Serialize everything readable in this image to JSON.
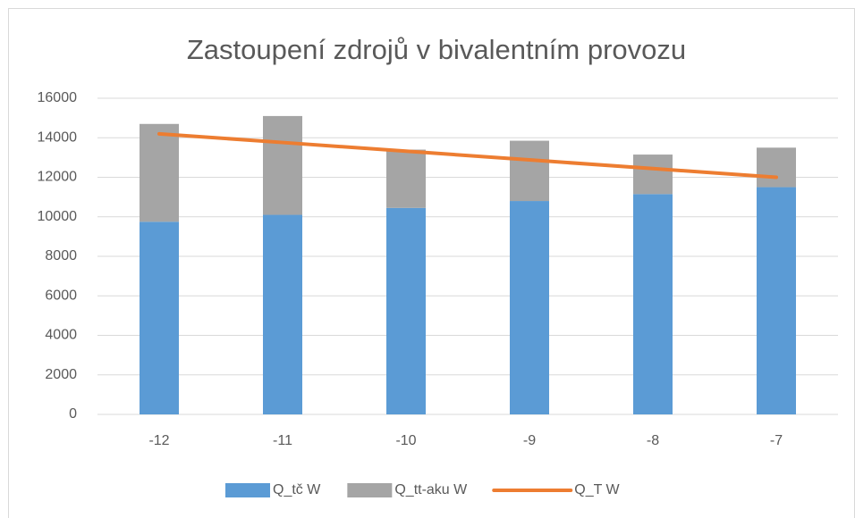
{
  "chart_data": {
    "type": "bar",
    "title": "Zastoupení zdrojů v bivalentním provozu",
    "categories": [
      "-12",
      "-11",
      "-10",
      "-9",
      "-8",
      "-7"
    ],
    "series": [
      {
        "name": "Q_tč W",
        "type": "bar",
        "color": "#5b9bd5",
        "values": [
          9750,
          10100,
          10450,
          10800,
          11150,
          11500
        ]
      },
      {
        "name": "Q_tt-aku W",
        "type": "bar",
        "color": "#a5a5a5",
        "values": [
          4950,
          5000,
          2950,
          3050,
          2000,
          2000
        ]
      },
      {
        "name": "Q_T W",
        "type": "line",
        "color": "#ed7d31",
        "values": [
          14200,
          13760,
          13320,
          12880,
          12440,
          12000
        ]
      }
    ],
    "stacked": true,
    "ylim": [
      0,
      16000
    ],
    "yticks": [
      0,
      2000,
      4000,
      6000,
      8000,
      10000,
      12000,
      14000,
      16000
    ],
    "grid": true,
    "legend": "bottom"
  }
}
